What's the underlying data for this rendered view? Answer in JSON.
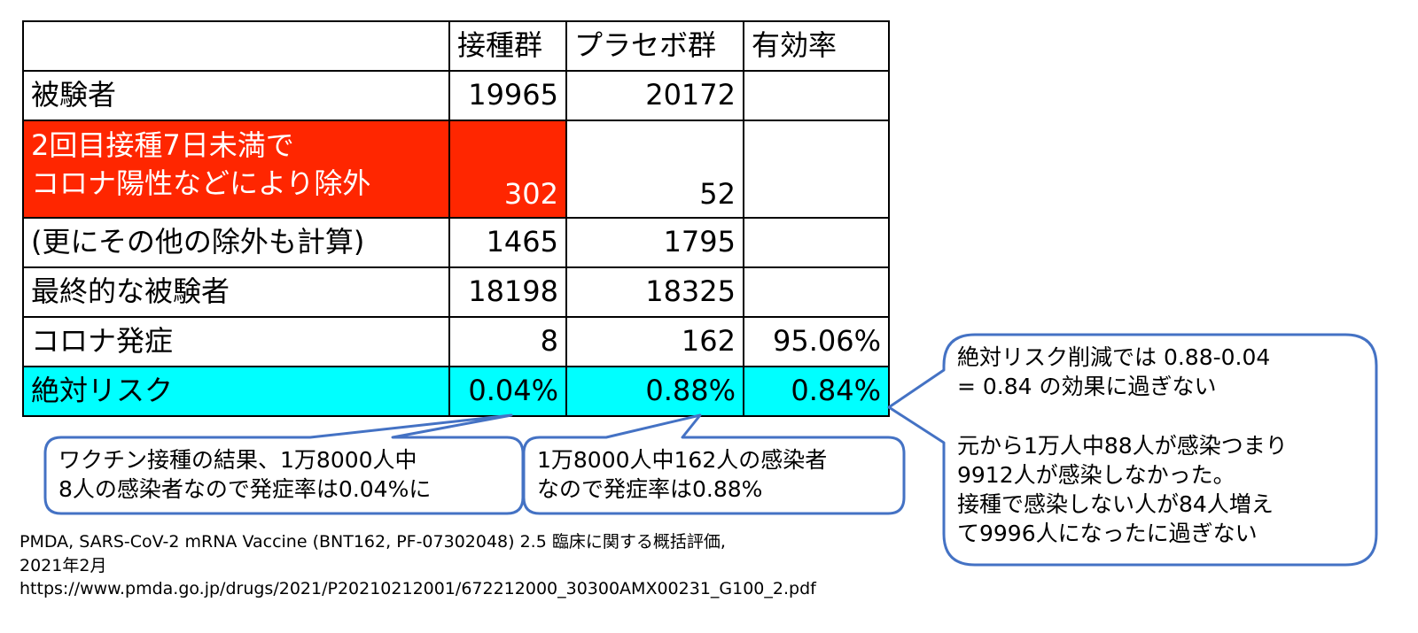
{
  "colors": {
    "excluded_bg": "#ff2600",
    "excluded_text": "#ffffff",
    "absolute_risk_bg": "#00ffff",
    "callout_border": "#4472c4",
    "table_border": "#000000"
  },
  "table": {
    "headers": [
      "",
      "接種群",
      "プラセボ群",
      "有効率"
    ],
    "rows": [
      {
        "label": "被験者",
        "vaccine": "19965",
        "placebo": "20172",
        "efficacy": ""
      },
      {
        "label_lines": [
          "2回目接種7日未満で",
          "コロナ陽性などにより除外"
        ],
        "vaccine": "302",
        "placebo": "52",
        "efficacy": ""
      },
      {
        "label": "(更にその他の除外も計算)",
        "vaccine": "1465",
        "placebo": "1795",
        "efficacy": ""
      },
      {
        "label": "最終的な被験者",
        "vaccine": "18198",
        "placebo": "18325",
        "efficacy": ""
      },
      {
        "label": "コロナ発症",
        "vaccine": "8",
        "placebo": "162",
        "efficacy": "95.06%"
      },
      {
        "label": "絶対リスク",
        "vaccine": "0.04%",
        "placebo": "0.88%",
        "efficacy": "0.84%"
      }
    ]
  },
  "callouts": {
    "vaccine_note": [
      "ワクチン接種の結果、1万8000人中",
      "8人の感染者なので発症率は0.04%に"
    ],
    "placebo_note": [
      "1万8000人中162人の感染者",
      "なので発症率は0.88%"
    ],
    "risk_note": [
      "絶対リスク削減では 0.88-0.04",
      "= 0.84 の効果に過ぎない",
      "",
      "元から1万人中88人が感染つまり",
      "9912人が感染しなかった。",
      "接種で感染しない人が84人増え",
      "て9996人になったに過ぎない"
    ]
  },
  "citation": {
    "line1": "PMDA, SARS-CoV-2 mRNA Vaccine (BNT162, PF-07302048) 2.5 臨床に関する概括評価,",
    "line2": "2021年2月",
    "line3": "https://www.pmda.go.jp/drugs/2021/P20210212001/672212000_30300AMX00231_G100_2.pdf"
  }
}
